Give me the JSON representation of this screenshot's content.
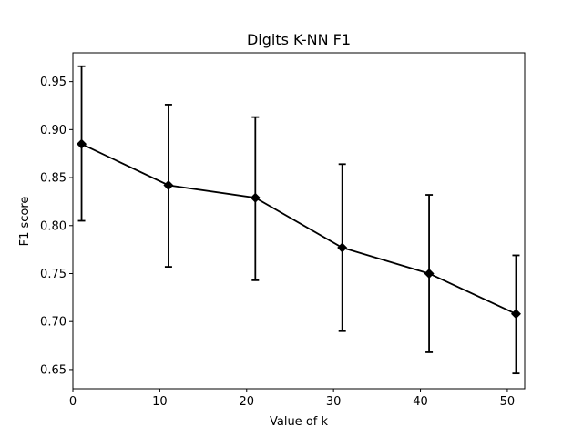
{
  "chart_data": {
    "type": "line",
    "title": "Digits K-NN F1",
    "xlabel": "Value of k",
    "ylabel": "F1 score",
    "xlim": [
      0,
      52
    ],
    "ylim": [
      0.63,
      0.98
    ],
    "xticks": [
      0,
      10,
      20,
      30,
      40,
      50
    ],
    "xtick_labels": [
      "0",
      "10",
      "20",
      "30",
      "40",
      "50"
    ],
    "yticks": [
      0.65,
      0.7,
      0.75,
      0.8,
      0.85,
      0.9,
      0.95
    ],
    "ytick_labels": [
      "0.65",
      "0.70",
      "0.75",
      "0.80",
      "0.85",
      "0.90",
      "0.95"
    ],
    "grid": false,
    "legend": "none",
    "series": [
      {
        "marker": "diamond",
        "color": "#000000",
        "x": [
          1,
          11,
          21,
          31,
          41,
          51
        ],
        "y": [
          0.885,
          0.842,
          0.829,
          0.777,
          0.75,
          0.708
        ],
        "error_low": [
          0.805,
          0.757,
          0.743,
          0.69,
          0.668,
          0.646
        ],
        "error_high": [
          0.966,
          0.926,
          0.913,
          0.864,
          0.832,
          0.769
        ]
      }
    ]
  }
}
